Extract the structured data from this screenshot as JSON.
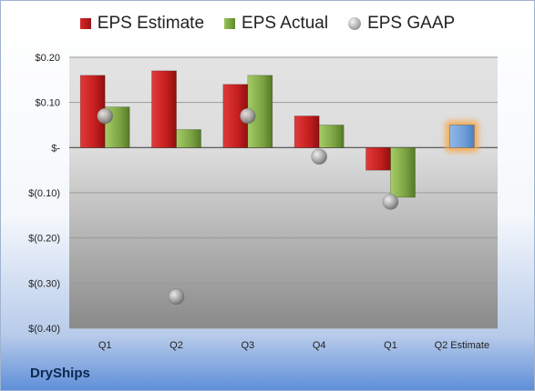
{
  "company": "DryShips",
  "legend": {
    "estimate": "EPS Estimate",
    "actual": "EPS Actual",
    "gaap": "EPS GAAP"
  },
  "colors": {
    "estimate": "#c42020",
    "actual": "#7ca343",
    "gaap": "#9a9a9a",
    "q2_estimate": "#6f9fd8",
    "q2_glow": "#f6a94f"
  },
  "chart_data": {
    "type": "bar",
    "categories": [
      "Q1",
      "Q2",
      "Q3",
      "Q4",
      "Q1",
      "Q2 Estimate"
    ],
    "series": [
      {
        "name": "EPS Estimate",
        "values": [
          0.16,
          0.17,
          0.14,
          0.07,
          -0.05,
          0.05
        ]
      },
      {
        "name": "EPS Actual",
        "values": [
          0.09,
          0.04,
          0.16,
          0.05,
          -0.11,
          null
        ]
      },
      {
        "name": "EPS GAAP",
        "values": [
          0.07,
          -0.33,
          0.07,
          -0.02,
          -0.12,
          null
        ]
      }
    ],
    "y_ticks": [
      "$0.20",
      "$0.10",
      "$-",
      "$(0.10)",
      "$(0.20)",
      "$(0.30)",
      "$(0.40)"
    ],
    "ylim": [
      -0.4,
      0.2
    ],
    "grid": true,
    "legend_position": "top"
  }
}
